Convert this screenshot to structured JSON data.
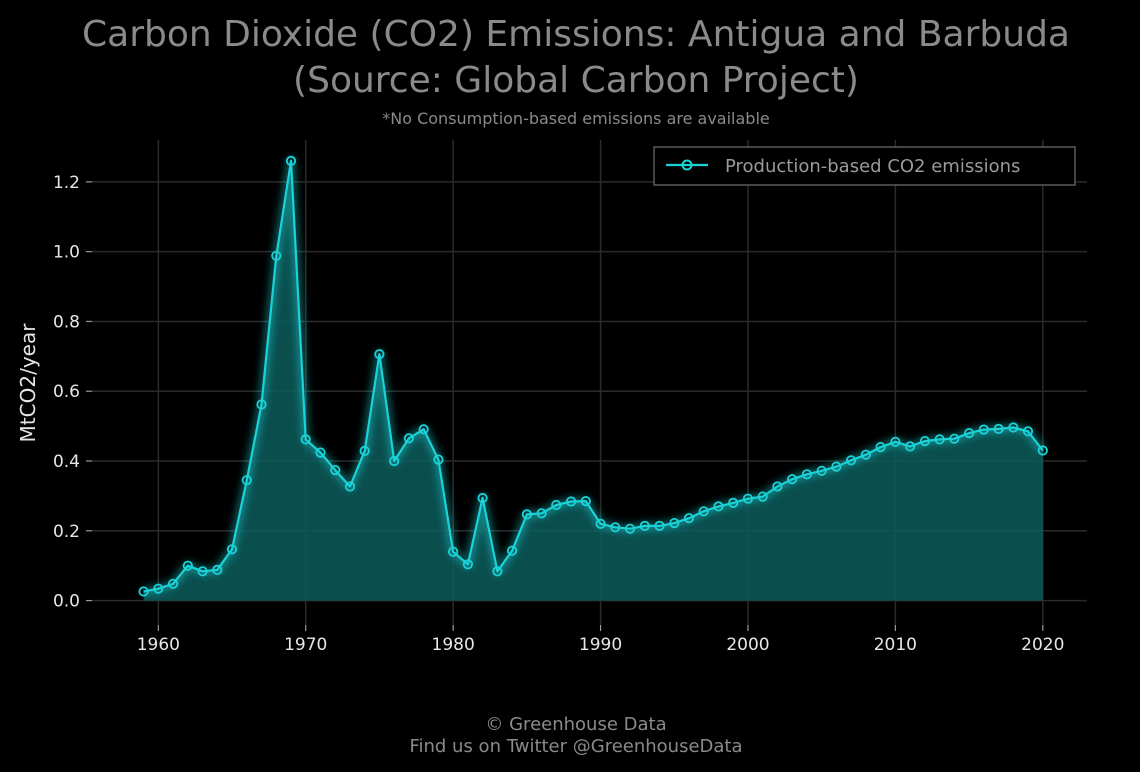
{
  "chart_data": {
    "type": "area",
    "title_line1": "Carbon Dioxide (CO2) Emissions: Antigua and Barbuda",
    "title_line2": "(Source: Global Carbon Project)",
    "subtitle": "*No Consumption-based emissions are available",
    "xlabel": "",
    "ylabel": "MtCO2/year",
    "xlim": [
      1955.5,
      2023
    ],
    "ylim": [
      -0.07,
      1.32
    ],
    "x_ticks": [
      1960,
      1970,
      1980,
      1990,
      2000,
      2010,
      2020
    ],
    "x_tick_labels": [
      "1960",
      "1970",
      "1980",
      "1990",
      "2000",
      "2010",
      "2020"
    ],
    "y_ticks": [
      0.0,
      0.2,
      0.4,
      0.6,
      0.8,
      1.0,
      1.2
    ],
    "y_tick_labels": [
      "0.0",
      "0.2",
      "0.4",
      "0.6",
      "0.8",
      "1.0",
      "1.2"
    ],
    "grid": true,
    "legend_position": "top-right",
    "series": [
      {
        "name": "Production-based CO2 emissions",
        "color": "#19d3d8",
        "fill_color": "#0d5c5c",
        "x": [
          1959,
          1960,
          1961,
          1962,
          1963,
          1964,
          1965,
          1966,
          1967,
          1968,
          1969,
          1970,
          1971,
          1972,
          1973,
          1974,
          1975,
          1976,
          1977,
          1978,
          1979,
          1980,
          1981,
          1982,
          1983,
          1984,
          1985,
          1986,
          1987,
          1988,
          1989,
          1990,
          1991,
          1992,
          1993,
          1994,
          1995,
          1996,
          1997,
          1998,
          1999,
          2000,
          2001,
          2002,
          2003,
          2004,
          2005,
          2006,
          2007,
          2008,
          2009,
          2010,
          2011,
          2012,
          2013,
          2014,
          2015,
          2016,
          2017,
          2018,
          2019,
          2020
        ],
        "values": [
          0.026,
          0.034,
          0.048,
          0.1,
          0.084,
          0.088,
          0.147,
          0.345,
          0.562,
          0.988,
          1.26,
          0.462,
          0.424,
          0.374,
          0.327,
          0.429,
          0.706,
          0.4,
          0.465,
          0.491,
          0.404,
          0.14,
          0.104,
          0.294,
          0.084,
          0.143,
          0.247,
          0.25,
          0.274,
          0.284,
          0.285,
          0.22,
          0.21,
          0.206,
          0.214,
          0.214,
          0.222,
          0.236,
          0.256,
          0.27,
          0.28,
          0.292,
          0.298,
          0.327,
          0.348,
          0.362,
          0.372,
          0.384,
          0.402,
          0.418,
          0.44,
          0.455,
          0.442,
          0.457,
          0.462,
          0.464,
          0.48,
          0.49,
          0.492,
          0.496,
          0.485,
          0.43
        ]
      }
    ]
  },
  "footer": {
    "line1": "© Greenhouse Data",
    "line2": "Find us on Twitter @GreenhouseData"
  }
}
